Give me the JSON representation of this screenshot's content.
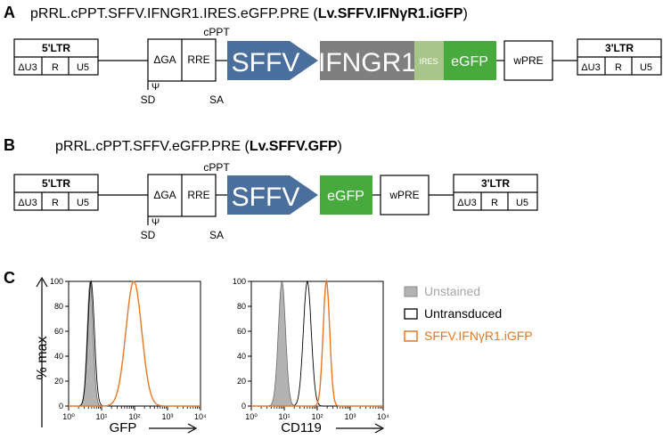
{
  "panel_a": {
    "letter": "A",
    "title_prefix": "pRRL.cPPT.SFFV.IFNGR1.IRES.eGFP.PRE (",
    "title_bold": "Lv.SFFV.IFNγR1.iGFP",
    "title_suffix": ")",
    "ltr5": {
      "label": "5'LTR",
      "cells": [
        "ΔU3",
        "R",
        "U5"
      ]
    },
    "ga": "ΔGA",
    "rre": "RRE",
    "cppt": "cPPT",
    "psi": "Ψ",
    "sd": "SD",
    "sa": "SA",
    "sffv": "SFFV",
    "ifngr1": "IFNGR1",
    "ires": "IRES",
    "egfp": "eGFP",
    "wpre": "wPRE",
    "ltr3": {
      "label": "3'LTR",
      "cells": [
        "ΔU3",
        "R",
        "U5"
      ]
    }
  },
  "panel_b": {
    "letter": "B",
    "title_prefix": "pRRL.cPPT.SFFV.eGFP.PRE (",
    "title_bold": "Lv.SFFV.GFP",
    "title_suffix": ")",
    "ltr5": {
      "label": "5'LTR",
      "cells": [
        "ΔU3",
        "R",
        "U5"
      ]
    },
    "ga": "ΔGA",
    "rre": "RRE",
    "cppt": "cPPT",
    "psi": "Ψ",
    "sd": "SD",
    "sa": "SA",
    "sffv": "SFFV",
    "egfp": "eGFP",
    "wpre": "wPRE",
    "ltr3": {
      "label": "3'LTR",
      "cells": [
        "ΔU3",
        "R",
        "U5"
      ]
    }
  },
  "panel_c": {
    "letter": "C",
    "ylabel": "% max",
    "plot1_xlabel": "GFP",
    "plot2_xlabel": "CD119",
    "yticks": [
      "0",
      "20",
      "40",
      "60",
      "80",
      "100"
    ],
    "xticks": [
      "10⁰",
      "10¹",
      "10²",
      "10³",
      "10⁴"
    ],
    "legend": [
      {
        "label": "Unstained",
        "color": "#a6a6a6"
      },
      {
        "label": "Untransduced",
        "color": "#000000"
      },
      {
        "label": "SFFV.IFNγR1.iGFP",
        "color": "#e87722"
      }
    ]
  },
  "colors": {
    "sffv": "#4a6f9c",
    "ifngr1": "#7f7f7f",
    "ires": "#a8c58a",
    "egfp": "#46aa3c",
    "unstained_fill": "#b3b3b3",
    "orange": "#e87722"
  },
  "chart_data": [
    {
      "type": "area",
      "xlabel": "GFP",
      "ylabel": "% max",
      "x_scale": "log",
      "xlim": [
        1,
        10000
      ],
      "ylim": [
        0,
        100
      ],
      "series": [
        {
          "name": "Unstained",
          "peak_x": 4.5,
          "log_width": 0.09,
          "peak_y": 100
        },
        {
          "name": "Untransduced",
          "peak_x": 4.8,
          "log_width": 0.1,
          "peak_y": 100
        },
        {
          "name": "SFFV.IFNγR1.iGFP",
          "peak_x": 95,
          "log_width": 0.24,
          "peak_y": 100
        }
      ]
    },
    {
      "type": "area",
      "xlabel": "CD119",
      "ylabel": "% max",
      "x_scale": "log",
      "xlim": [
        1,
        10000
      ],
      "ylim": [
        0,
        100
      ],
      "series": [
        {
          "name": "Unstained",
          "peak_x": 8.5,
          "log_width": 0.11,
          "peak_y": 100
        },
        {
          "name": "Untransduced",
          "peak_x": 50,
          "log_width": 0.12,
          "peak_y": 100
        },
        {
          "name": "SFFV.IFNγR1.iGFP",
          "peak_x": 190,
          "log_width": 0.1,
          "peak_y": 100
        }
      ]
    }
  ]
}
